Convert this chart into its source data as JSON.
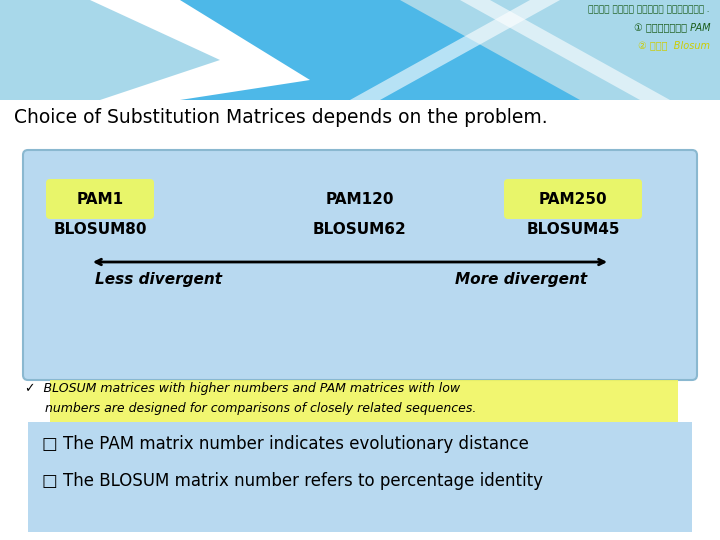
{
  "bg_color": "#ffffff",
  "title": "Choice of Substitution Matrices depends on the problem.",
  "title_fontsize": 13.5,
  "box_color": "#b8d9f0",
  "highlight_yellow": "#e8f56a",
  "pam1_label": "PAM1",
  "pam1_sub": "BLOSUM80",
  "pam120_label": "PAM120",
  "pam120_sub": "BLOSUM62",
  "pam250_label": "PAM250",
  "pam250_sub": "BLOSUM45",
  "less_divergent": "Less divergent",
  "more_divergent": "More divergent",
  "bullet1_pre": "✓  BLOSUM matrices with higher numbers and ",
  "bullet1_hl": "PAM matrices with low\n     numbers are designed for comparisons of closely related sequences",
  "bullet1_post": ".",
  "bullet2_text1": "□ The PAM matrix number indicates evolutionary distance",
  "bullet2_text2": "□ The BLOSUM matrix number refers to percentage identity",
  "arabic_line1": "مسلم مشرح بصبرى السرحوق .",
  "arabic_line2": "① بالأحمر PAM",
  "arabic_line3": "② كلى  Blosum",
  "arabic_color1": "#1a5c1a",
  "arabic_color2": "#cccc00"
}
